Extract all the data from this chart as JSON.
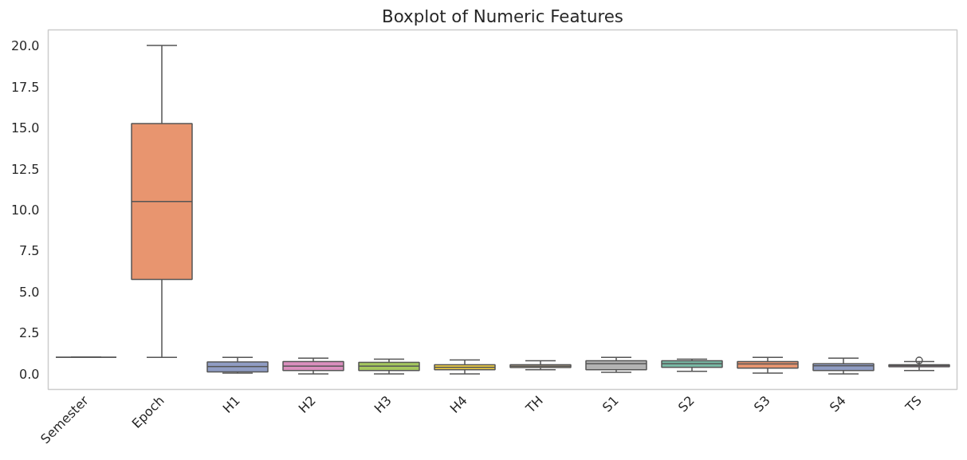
{
  "chart_data": {
    "type": "box",
    "title": "Boxplot of Numeric Features",
    "categories": [
      "Semester",
      "Epoch",
      "H1",
      "H2",
      "H3",
      "H4",
      "TH",
      "S1",
      "S2",
      "S3",
      "S4",
      "TS"
    ],
    "colors": [
      "#555555",
      "#e8956f",
      "#8f9cc3",
      "#da8fbe",
      "#a5c75e",
      "#f0cf45",
      "#d8c09a",
      "#b3b3b3",
      "#78b8a4",
      "#e8956f",
      "#8f9cc3",
      "#da8fbe"
    ],
    "boxes": [
      {
        "low": 1.0,
        "q1": 1.0,
        "median": 1.0,
        "q3": 1.0,
        "high": 1.0
      },
      {
        "low": 1.0,
        "q1": 5.75,
        "median": 10.5,
        "q3": 15.25,
        "high": 20.0
      },
      {
        "low": 0.05,
        "q1": 0.12,
        "median": 0.45,
        "q3": 0.72,
        "high": 1.0
      },
      {
        "low": 0.0,
        "q1": 0.2,
        "median": 0.47,
        "q3": 0.75,
        "high": 0.95
      },
      {
        "low": 0.0,
        "q1": 0.2,
        "median": 0.47,
        "q3": 0.7,
        "high": 0.9
      },
      {
        "low": 0.0,
        "q1": 0.25,
        "median": 0.4,
        "q3": 0.55,
        "high": 0.85
      },
      {
        "low": 0.25,
        "q1": 0.38,
        "median": 0.47,
        "q3": 0.55,
        "high": 0.8
      },
      {
        "low": 0.1,
        "q1": 0.25,
        "median": 0.62,
        "q3": 0.8,
        "high": 1.0
      },
      {
        "low": 0.15,
        "q1": 0.4,
        "median": 0.62,
        "q3": 0.8,
        "high": 0.9
      },
      {
        "low": 0.05,
        "q1": 0.35,
        "median": 0.6,
        "q3": 0.75,
        "high": 1.0
      },
      {
        "low": 0.0,
        "q1": 0.2,
        "median": 0.5,
        "q3": 0.62,
        "high": 0.95
      },
      {
        "low": 0.2,
        "q1": 0.43,
        "median": 0.5,
        "q3": 0.55,
        "high": 0.75,
        "outliers": [
          0.82
        ]
      }
    ],
    "ylim": [
      -0.95,
      20.95
    ],
    "yticks": [
      {
        "value": 0,
        "label": "0.0"
      },
      {
        "value": 2.5,
        "label": "2.5"
      },
      {
        "value": 5,
        "label": "5.0"
      },
      {
        "value": 7.5,
        "label": "7.5"
      },
      {
        "value": 10,
        "label": "10.0"
      },
      {
        "value": 12.5,
        "label": "12.5"
      },
      {
        "value": 15,
        "label": "15.0"
      },
      {
        "value": 17.5,
        "label": "17.5"
      },
      {
        "value": 20,
        "label": "20.0"
      }
    ],
    "grid": false
  }
}
